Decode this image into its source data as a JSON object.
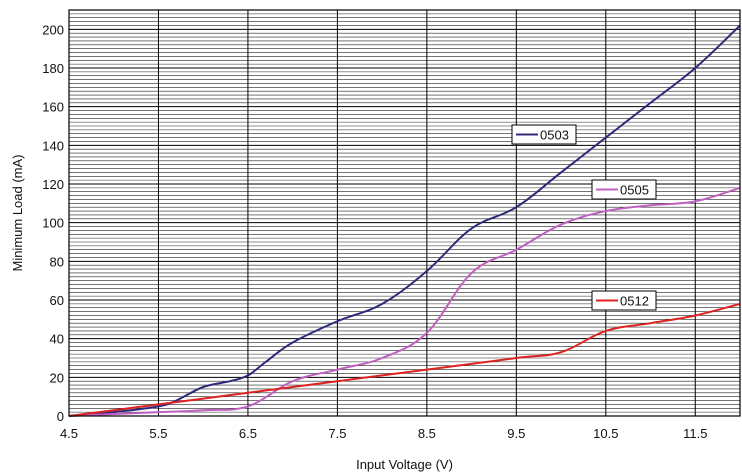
{
  "chart_data": {
    "type": "line",
    "xlabel": "Input Voltage (V)",
    "ylabel": "Minimum Load (mA)",
    "xlim": [
      4.5,
      12
    ],
    "ylim": [
      0,
      210
    ],
    "x_ticks": [
      "4.5",
      "5.5",
      "6.5",
      "7.5",
      "8.5",
      "9.5",
      "10.5",
      "11.5"
    ],
    "y_ticks": [
      "0",
      "20",
      "40",
      "60",
      "80",
      "100",
      "120",
      "140",
      "160",
      "180",
      "200"
    ],
    "grid": true,
    "series": [
      {
        "name": "0503",
        "color": "#2e2a7a",
        "x": [
          4.5,
          5.0,
          5.5,
          5.7,
          6.0,
          6.3,
          6.5,
          6.7,
          7.0,
          7.5,
          8.0,
          8.5,
          9.0,
          9.5,
          10.0,
          10.5,
          11.0,
          11.5,
          12.0
        ],
        "values": [
          0,
          2,
          5,
          8,
          15,
          18,
          21,
          28,
          38,
          49,
          58,
          75,
          97,
          108,
          126,
          144,
          162,
          180,
          202
        ]
      },
      {
        "name": "0505",
        "color": "#c060c0",
        "x": [
          4.5,
          5.5,
          6.0,
          6.5,
          7.0,
          7.5,
          8.0,
          8.5,
          9.0,
          9.5,
          10.0,
          10.5,
          11.0,
          11.5,
          12.0
        ],
        "values": [
          0,
          2,
          3,
          5,
          18,
          24,
          30,
          43,
          74,
          86,
          99,
          106,
          109,
          111,
          118
        ]
      },
      {
        "name": "0512",
        "color": "#dd2222",
        "x": [
          4.5,
          5.5,
          6.5,
          7.5,
          8.5,
          9.5,
          10.0,
          10.5,
          11.0,
          11.5,
          12.0
        ],
        "values": [
          0,
          6,
          12,
          18,
          24,
          30,
          33,
          44,
          48,
          52,
          58
        ]
      }
    ],
    "legend_labels": [
      "0503",
      "0505",
      "0512"
    ]
  }
}
